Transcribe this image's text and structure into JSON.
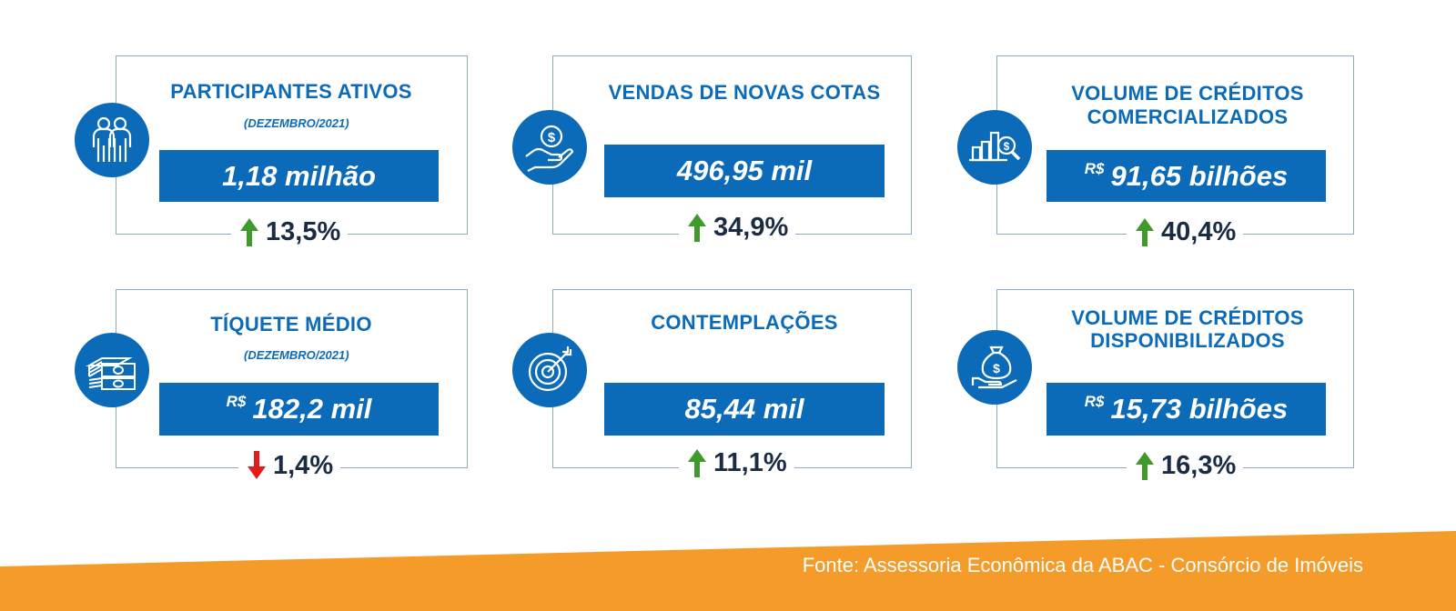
{
  "colors": {
    "primary": "#0b6bb8",
    "up": "#3f9a2c",
    "down": "#e31b1b",
    "footer": "#f49b2a"
  },
  "cards": [
    {
      "title": "PARTICIPANTES ATIVOS",
      "subtitle": "(DEZEMBRO/2021)",
      "currency": "",
      "value": "1,18 milhão",
      "change": "13,5%",
      "direction": "up",
      "icon": "people-icon"
    },
    {
      "title": "VENDAS DE NOVAS COTAS",
      "subtitle": "",
      "currency": "",
      "value": "496,95 mil",
      "change": "34,9%",
      "direction": "up",
      "icon": "hand-coin-icon"
    },
    {
      "title_line1": "VOLUME DE CRÉDITOS",
      "title_line2": "COMERCIALIZADOS",
      "currency": "R$",
      "value": "91,65 bilhões",
      "change": "40,4%",
      "direction": "up",
      "icon": "chart-magnifier-icon"
    },
    {
      "title": "TÍQUETE MÉDIO",
      "subtitle": "(DEZEMBRO/2021)",
      "currency": "R$",
      "value": "182,2 mil",
      "change": "1,4%",
      "direction": "down",
      "icon": "money-stack-icon"
    },
    {
      "title": "CONTEMPLAÇÕES",
      "subtitle": "",
      "currency": "",
      "value": "85,44 mil",
      "change": "11,1%",
      "direction": "up",
      "icon": "target-icon"
    },
    {
      "title_line1": "VOLUME DE CRÉDITOS",
      "title_line2": "DISPONIBILIZADOS",
      "currency": "R$",
      "value": "15,73 bilhões",
      "change": "16,3%",
      "direction": "up",
      "icon": "money-bag-hand-icon"
    }
  ],
  "footer": {
    "source": "Fonte: Assessoria Econômica da ABAC - Consórcio de Imóveis"
  }
}
